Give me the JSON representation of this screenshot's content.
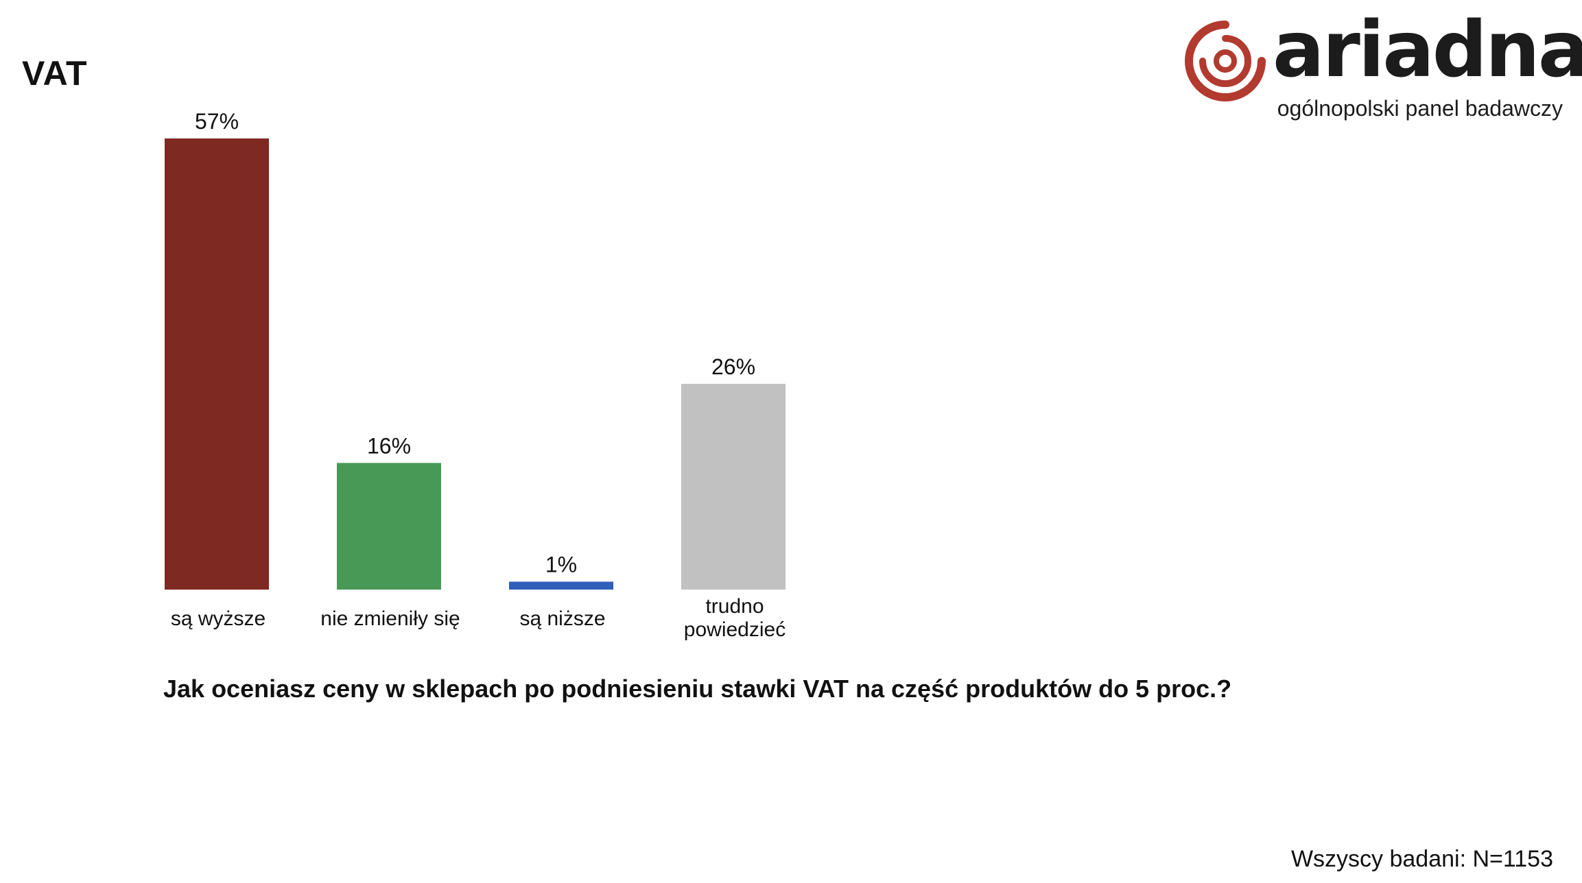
{
  "page": {
    "title": "VAT",
    "question": "Jak oceniasz ceny w sklepach po podniesieniu stawki VAT na część produktów do 5 proc.?",
    "sample_note": "Wszyscy badani: N=1153"
  },
  "logo": {
    "wordmark": "ariadna",
    "tagline": "ogólnopolski panel badawczy",
    "mark_color": "#b23a2f",
    "text_color": "#1c1c1c"
  },
  "chart_data": {
    "type": "bar",
    "categories": [
      "są wyższe",
      "nie zmieniły się",
      "są niższe",
      "trudno powiedzieć"
    ],
    "category_lines": [
      [
        "są wyższe"
      ],
      [
        "nie zmieniły się"
      ],
      [
        "są niższe"
      ],
      [
        "trudno",
        "powiedzieć"
      ]
    ],
    "values": [
      57,
      16,
      1,
      26
    ],
    "value_labels": [
      "57%",
      "16%",
      "1%",
      "26%"
    ],
    "colors": [
      "#7e2921",
      "#489955",
      "#2f5fb8",
      "#c1c1c1"
    ],
    "ylim": [
      0,
      57
    ],
    "grid": false,
    "legend": "none",
    "title": "",
    "xlabel": "",
    "ylabel": ""
  }
}
